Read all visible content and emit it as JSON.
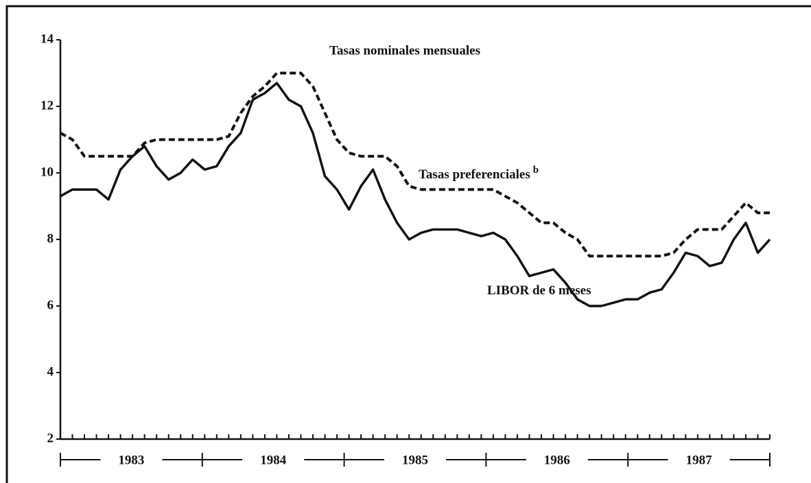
{
  "chart_data": {
    "type": "line",
    "title": "Tasas nominales mensuales",
    "categories": [
      null,
      null,
      null,
      null,
      null,
      null,
      null,
      null,
      null,
      null,
      null,
      null,
      null,
      null,
      null,
      null,
      null,
      null,
      null,
      null,
      null,
      null,
      null,
      null,
      null,
      null,
      null,
      null,
      null,
      null,
      null,
      null,
      null,
      null,
      null,
      null,
      null,
      null,
      null,
      null,
      null,
      null,
      null,
      null,
      null,
      null,
      null,
      null,
      null,
      null,
      null,
      null,
      null,
      null,
      null,
      null,
      null,
      null,
      null,
      null
    ],
    "groups": [
      "1983",
      "1984",
      "1985",
      "1986",
      "1987"
    ],
    "ylim": [
      2,
      14
    ],
    "yticks": [
      2,
      4,
      6,
      8,
      10,
      12,
      14
    ],
    "series": [
      {
        "name": "Tasas preferenciales",
        "name_note": "b",
        "color": "#111111",
        "dashed": true,
        "values": [
          11.2,
          11.0,
          10.5,
          10.5,
          10.5,
          10.5,
          10.5,
          10.9,
          11.0,
          11.0,
          11.0,
          11.0,
          11.0,
          11.0,
          11.1,
          11.8,
          12.3,
          12.6,
          13.0,
          13.0,
          13.0,
          12.6,
          11.8,
          11.0,
          10.6,
          10.5,
          10.5,
          10.5,
          10.2,
          9.6,
          9.5,
          9.5,
          9.5,
          9.5,
          9.5,
          9.5,
          9.5,
          9.3,
          9.1,
          8.8,
          8.5,
          8.5,
          8.2,
          8.0,
          7.5,
          7.5,
          7.5,
          7.5,
          7.5,
          7.5,
          7.5,
          7.6,
          8.0,
          8.3,
          8.3,
          8.3,
          8.7,
          9.1,
          8.8,
          8.8
        ]
      },
      {
        "name": "LIBOR de 6 meses",
        "color": "#111111",
        "dashed": false,
        "values": [
          9.3,
          9.5,
          9.5,
          9.5,
          9.2,
          10.1,
          10.5,
          10.8,
          10.2,
          9.8,
          10.0,
          10.4,
          10.1,
          10.2,
          10.8,
          11.2,
          12.2,
          12.4,
          12.7,
          12.2,
          12.0,
          11.2,
          9.9,
          9.5,
          8.9,
          9.6,
          10.1,
          9.2,
          8.5,
          8.0,
          8.2,
          8.3,
          8.3,
          8.3,
          8.2,
          8.1,
          8.2,
          8.0,
          7.5,
          6.9,
          7.0,
          7.1,
          6.7,
          6.2,
          6.0,
          6.0,
          6.1,
          6.2,
          6.2,
          6.4,
          6.5,
          7.0,
          7.6,
          7.5,
          7.2,
          7.3,
          8.0,
          8.5,
          7.6,
          8.0
        ]
      }
    ]
  }
}
